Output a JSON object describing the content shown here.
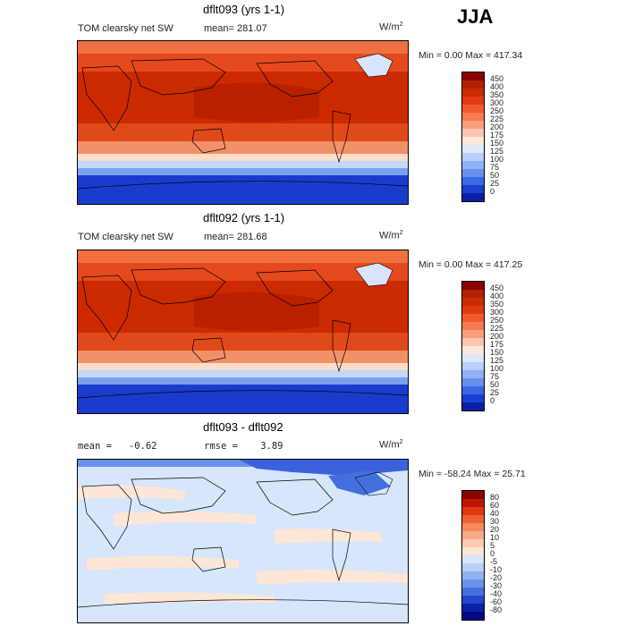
{
  "season": "JJA",
  "panels": [
    {
      "title": "dflt093 (yrs 1-1)",
      "left_label": "TOM clearsky net SW",
      "mean_label": "mean= 281.07",
      "units": "W/m",
      "units_sup": "2",
      "minmax": "Min =    0.00 Max = 417.34",
      "legend_labels": [
        "450",
        "400",
        "350",
        "300",
        "250",
        "225",
        "200",
        "175",
        "150",
        "125",
        "100",
        "75",
        "50",
        "25",
        "0"
      ],
      "legend_colors": [
        "#8b0000",
        "#b22200",
        "#cc2a00",
        "#e03a0e",
        "#ee5a2c",
        "#f77a50",
        "#fc9e7c",
        "#fdc6ac",
        "#fde8da",
        "#dce8fb",
        "#b7cffa",
        "#8fb2f5",
        "#6692ee",
        "#3a6ae3",
        "#1a40cf",
        "#0a1ea8"
      ]
    },
    {
      "title": "dflt092 (yrs 1-1)",
      "left_label": "TOM clearsky net SW",
      "mean_label": "mean= 281.68",
      "units": "W/m",
      "units_sup": "2",
      "minmax": "Min =    0.00 Max = 417.25",
      "legend_labels": [
        "450",
        "400",
        "350",
        "300",
        "250",
        "225",
        "200",
        "175",
        "150",
        "125",
        "100",
        "75",
        "50",
        "25",
        "0"
      ],
      "legend_colors": [
        "#8b0000",
        "#b22200",
        "#cc2a00",
        "#e03a0e",
        "#ee5a2c",
        "#f77a50",
        "#fc9e7c",
        "#fdc6ac",
        "#fde8da",
        "#dce8fb",
        "#b7cffa",
        "#8fb2f5",
        "#6692ee",
        "#3a6ae3",
        "#1a40cf",
        "#0a1ea8"
      ]
    },
    {
      "title": "dflt093 - dflt092",
      "left_label": "mean =   -0.62",
      "mean_label": "rmse =    3.89",
      "units": "W/m",
      "units_sup": "2",
      "minmax": "Min = -58.24 Max =  25.71",
      "legend_labels": [
        "80",
        "60",
        "40",
        "30",
        "20",
        "10",
        "5",
        "0",
        "-5",
        "-10",
        "-20",
        "-30",
        "-40",
        "-60",
        "-80"
      ],
      "legend_colors": [
        "#8b0000",
        "#c01800",
        "#dd3a10",
        "#f06030",
        "#f8885e",
        "#fbaa88",
        "#fdcbb0",
        "#fde6d6",
        "#d6e6fb",
        "#b6d0f8",
        "#8fb2f3",
        "#6a92ea",
        "#4470dd",
        "#2248cc",
        "#0a22a8",
        "#000a80"
      ]
    }
  ]
}
